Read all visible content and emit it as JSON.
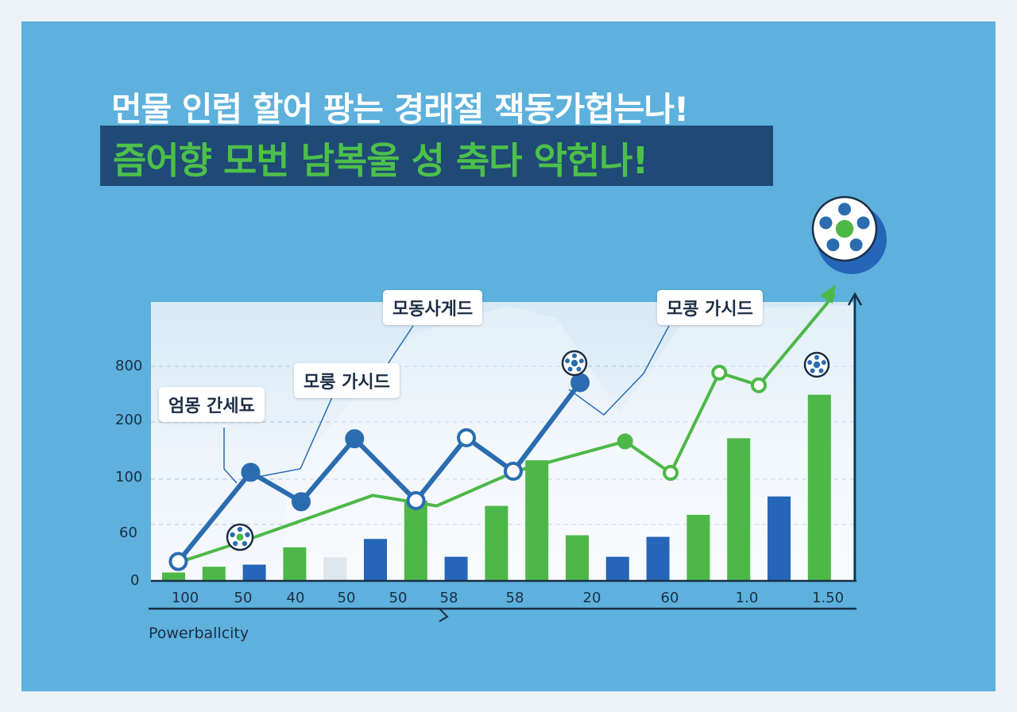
{
  "header": {
    "title_line1": "먼물 인럽 할어 팡는 경래절 잭동가헙는나!",
    "title_line2": "즘어향 모번 남복울 성 축다 악헌나!"
  },
  "footer": {
    "label": "Powerballcity"
  },
  "callouts": [
    "엄몽 간세됴",
    "모룽 가시드",
    "모동사게드",
    "모콩 가시드"
  ],
  "colors": {
    "blue_line": "#2b6cb0",
    "green_line": "#4db848",
    "bar_green": "#4db848",
    "bar_blue": "#2566b8",
    "bar_pale": "#dde6ef",
    "panel_bg": "#5db1dc",
    "title_box": "#1f4a76"
  },
  "chart_data": {
    "type": "bar",
    "title": "",
    "xlabel": "",
    "ylabel": "",
    "y_tick_labels": [
      "0",
      "60",
      "100",
      "200",
      "800"
    ],
    "x_tick_labels": [
      "100",
      "50",
      "40",
      "50",
      "50",
      "58",
      "58",
      "20",
      "60",
      "1.0",
      "1.50"
    ],
    "grid": true,
    "bars": [
      {
        "value": 0.16,
        "color": "green"
      },
      {
        "value": 0.27,
        "color": "green"
      },
      {
        "value": 0.31,
        "color": "blue"
      },
      {
        "value": 0.64,
        "color": "green"
      },
      {
        "value": 0.45,
        "color": "pale"
      },
      {
        "value": 0.8,
        "color": "blue"
      },
      {
        "value": 1.53,
        "color": "green"
      },
      {
        "value": 0.46,
        "color": "blue"
      },
      {
        "value": 1.43,
        "color": "green"
      },
      {
        "value": 2.3,
        "color": "green"
      },
      {
        "value": 0.87,
        "color": "green"
      },
      {
        "value": 0.46,
        "color": "blue"
      },
      {
        "value": 0.84,
        "color": "blue"
      },
      {
        "value": 1.26,
        "color": "green"
      },
      {
        "value": 2.72,
        "color": "green"
      },
      {
        "value": 1.61,
        "color": "blue"
      },
      {
        "value": 3.55,
        "color": "green"
      }
    ],
    "series": [
      {
        "style": "blue-line",
        "points": [
          [
            0.45,
            0.37
          ],
          [
            1.64,
            2.07
          ],
          [
            2.47,
            1.51
          ],
          [
            3.35,
            2.71
          ],
          [
            4.36,
            1.53
          ],
          [
            5.19,
            2.73
          ],
          [
            5.96,
            2.09
          ],
          [
            7.06,
            3.78
          ],
          [
            7.95,
            3.06
          ],
          [
            9.1,
            3.97
          ],
          [
            10.0,
            5.47
          ]
        ]
      },
      {
        "style": "green-line",
        "points": [
          [
            0.45,
            0.35
          ],
          [
            1.5,
            0.75
          ],
          [
            3.65,
            1.63
          ],
          [
            4.7,
            1.43
          ],
          [
            6.0,
            2.09
          ],
          [
            7.8,
            2.66
          ],
          [
            8.55,
            2.06
          ],
          [
            9.35,
            3.97
          ],
          [
            10.0,
            3.73
          ],
          [
            11.25,
            5.47
          ]
        ]
      }
    ]
  }
}
